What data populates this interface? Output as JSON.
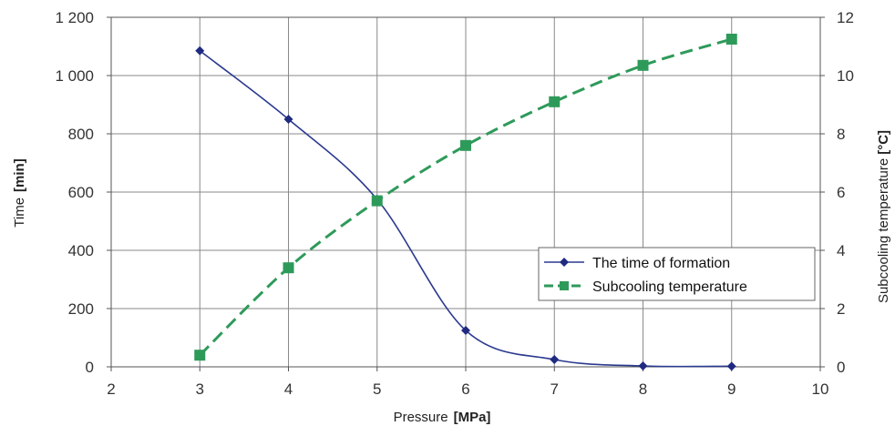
{
  "chart_data": {
    "type": "line",
    "xlabel": "Pressure",
    "xlabel_unit": "[MPa]",
    "ylabel": "Time",
    "ylabel_unit": "[min]",
    "y2label": "Subcooling temperature",
    "y2label_unit": "[°C]",
    "xlim": [
      2,
      10
    ],
    "ylim": [
      0,
      1200
    ],
    "y2lim": [
      0,
      12
    ],
    "x_ticks": [
      "2",
      "3",
      "4",
      "5",
      "6",
      "7",
      "8",
      "9",
      "10"
    ],
    "y_ticks": [
      "0",
      "200",
      "400",
      "600",
      "800",
      "1 000",
      "1 200"
    ],
    "y2_ticks": [
      "0",
      "2",
      "4",
      "6",
      "8",
      "10",
      "12"
    ],
    "grid": true,
    "legend_position": "right",
    "series": [
      {
        "name": "The time of formation",
        "axis": "left",
        "color": "#2b3a8f",
        "marker": "diamond",
        "line_style": "solid-smooth",
        "x": [
          3,
          4,
          5,
          6,
          7,
          8,
          9
        ],
        "values": [
          1085,
          850,
          575,
          125,
          25,
          3,
          2
        ]
      },
      {
        "name": "Subcooling temperature",
        "axis": "right",
        "color": "#2e9a5a",
        "marker": "square",
        "line_style": "dashed-smooth",
        "x": [
          3,
          4,
          5,
          6,
          7,
          8,
          9
        ],
        "values": [
          0.4,
          3.4,
          5.7,
          7.6,
          9.1,
          10.35,
          11.25
        ]
      }
    ]
  }
}
